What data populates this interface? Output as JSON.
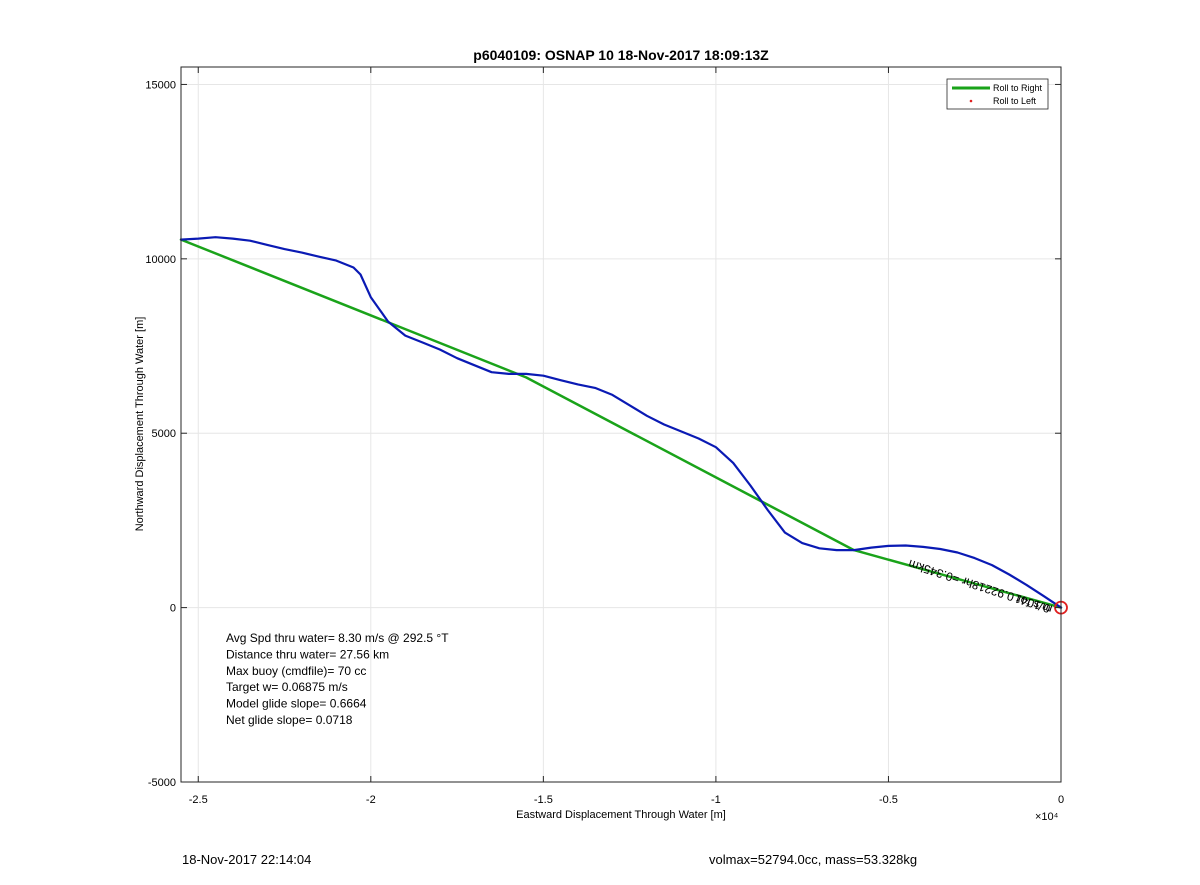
{
  "chart_data": {
    "type": "line",
    "title": "p6040109: OSNAP 10 18-Nov-2017 18:09:13Z",
    "xlabel": "Eastward Displacement Through Water [m]",
    "ylabel": "Northward Displacement Through Water [m]",
    "x_exponent_label": "×10⁴",
    "xlim": [
      -25500,
      0
    ],
    "ylim": [
      -5000,
      15500
    ],
    "x_ticks": [
      -25000,
      -20000,
      -15000,
      -10000,
      -5000,
      0
    ],
    "x_tick_labels": [
      "-2.5",
      "-2",
      "-1.5",
      "-1",
      "-0.5",
      "0"
    ],
    "y_ticks": [
      -5000,
      0,
      5000,
      10000,
      15000
    ],
    "y_tick_labels": [
      "-5000",
      "0",
      "5000",
      "10000",
      "15000"
    ],
    "grid": true,
    "legend": {
      "placement": "top-right",
      "entries": [
        "Roll to Right",
        "Roll to Left"
      ]
    },
    "series": [
      {
        "name": "Roll to Right",
        "color": "#1aa31a",
        "x": [
          -25500,
          -15500,
          -6000,
          0
        ],
        "y": [
          10550,
          6600,
          1650,
          0
        ]
      },
      {
        "color": "#0a1ab4",
        "x": [
          -25500,
          -25000,
          -24500,
          -24000,
          -23500,
          -23000,
          -22500,
          -22000,
          -21500,
          -21000,
          -20500,
          -20300,
          -20000,
          -19500,
          -19000,
          -18500,
          -18000,
          -17500,
          -17000,
          -16500,
          -16000,
          -15500,
          -15000,
          -14500,
          -14000,
          -13500,
          -13000,
          -12500,
          -12000,
          -11500,
          -11000,
          -10500,
          -10000,
          -9500,
          -9000,
          -8500,
          -8000,
          -7500,
          -7000,
          -6500,
          -6000,
          -5500,
          -5000,
          -4500,
          -4000,
          -3500,
          -3000,
          -2500,
          -2000,
          -1500,
          -1000,
          -500,
          0
        ],
        "y": [
          10550,
          10580,
          10620,
          10580,
          10520,
          10400,
          10280,
          10180,
          10060,
          9950,
          9750,
          9550,
          8900,
          8200,
          7800,
          7600,
          7400,
          7150,
          6950,
          6750,
          6700,
          6700,
          6650,
          6520,
          6400,
          6300,
          6100,
          5800,
          5500,
          5250,
          5050,
          4850,
          4600,
          4150,
          3500,
          2800,
          2150,
          1850,
          1700,
          1650,
          1650,
          1720,
          1770,
          1780,
          1740,
          1680,
          1580,
          1420,
          1220,
          950,
          650,
          330,
          0
        ]
      }
    ],
    "annotations": [
      {
        "text": "Avg Spd thru water=  8.30 m/s @ 292.5 °T"
      },
      {
        "text": "Distance thru water= 27.56 km"
      },
      {
        "text": "Max buoy (cmdfile)= 70 cc"
      },
      {
        "text": "Target w= 0.06875 m/s"
      },
      {
        "text": "Model glide slope= 0.6664"
      },
      {
        "text": "Net glide slope= 0.0718"
      }
    ],
    "rotated_label": "m/s for 0.92218hr =0.345km",
    "rotated_label_prefix": "0.1041"
  },
  "footer": {
    "left": "18-Nov-2017 22:14:04",
    "right": "volmax=52794.0cc, mass=53.328kg"
  }
}
